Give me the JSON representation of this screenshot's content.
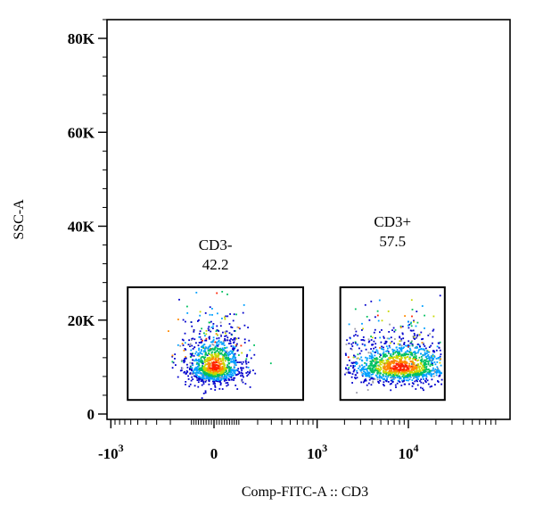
{
  "chart_data": {
    "type": "scatter",
    "subtype": "flow-cytometry-density-dot-plot",
    "xlabel": "Comp-FITC-A :: CD3",
    "ylabel": "SSC-A",
    "x_scale": "biexponential",
    "ylim": [
      0,
      85000
    ],
    "y_ticks": [
      {
        "value": 0,
        "label": "0"
      },
      {
        "value": 20000,
        "label": "20K"
      },
      {
        "value": 40000,
        "label": "40K"
      },
      {
        "value": 60000,
        "label": "60K"
      },
      {
        "value": 80000,
        "label": "80K"
      }
    ],
    "x_ticks": [
      {
        "value": -1000,
        "label": "-10",
        "exp": "3"
      },
      {
        "value": 0,
        "label": "0",
        "exp": ""
      },
      {
        "value": 1000,
        "label": "10",
        "exp": "3"
      },
      {
        "value": 10000,
        "label": "10",
        "exp": "4"
      }
    ],
    "gates": [
      {
        "name": "CD3-",
        "percent": "42.2",
        "x_range": [
          -650,
          700
        ],
        "y_range": [
          3000,
          27000
        ]
      },
      {
        "name": "CD3+",
        "percent": "57.5",
        "x_range": [
          1800,
          25000
        ],
        "y_range": [
          3000,
          27000
        ]
      }
    ],
    "populations": [
      {
        "gate": "CD3-",
        "x_center": 0,
        "y_center": 10000,
        "fraction": 0.422
      },
      {
        "gate": "CD3+",
        "x_center": 8000,
        "y_center": 10000,
        "fraction": 0.575
      }
    ],
    "density_colors": [
      "#0000cc",
      "#00a0ff",
      "#00c060",
      "#c8d800",
      "#ff8800",
      "#ff2000"
    ],
    "grid": false,
    "legend": "none"
  }
}
